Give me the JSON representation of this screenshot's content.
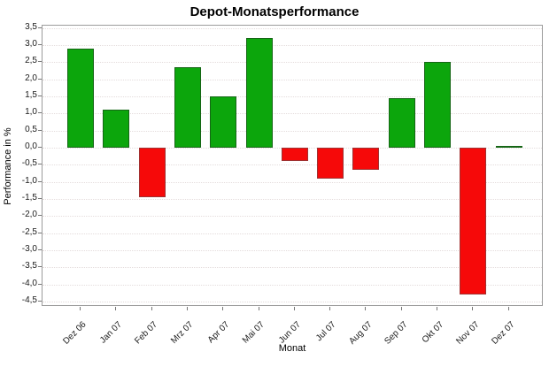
{
  "title": "Depot-Monatsperformance",
  "axes": {
    "y_label": "Performance in %",
    "x_label": "Monat"
  },
  "chart_data": {
    "type": "bar",
    "title": "Depot-Monatsperformance",
    "xlabel": "Monat",
    "ylabel": "Performance in %",
    "categories": [
      "Dez 06",
      "Jan 07",
      "Feb 07",
      "Mrz 07",
      "Apr 07",
      "Mai 07",
      "Jun 07",
      "Jul 07",
      "Aug 07",
      "Sep 07",
      "Okt 07",
      "Nov 07",
      "Dez 07"
    ],
    "values": [
      2.9,
      1.1,
      -1.45,
      2.35,
      1.5,
      3.2,
      -0.4,
      -0.9,
      -0.65,
      1.45,
      2.5,
      -4.3,
      0.05
    ],
    "ylim": [
      -4.5,
      3.5
    ],
    "ytick_step": 0.5,
    "decimal_separator": ",",
    "grid": "horizontal-dotted",
    "legend": "none",
    "positive_color": "#0ca60c",
    "negative_color": "#f60909",
    "gridline_color": "#e4dcdc",
    "plot_border_color": "#9b9b9b"
  }
}
